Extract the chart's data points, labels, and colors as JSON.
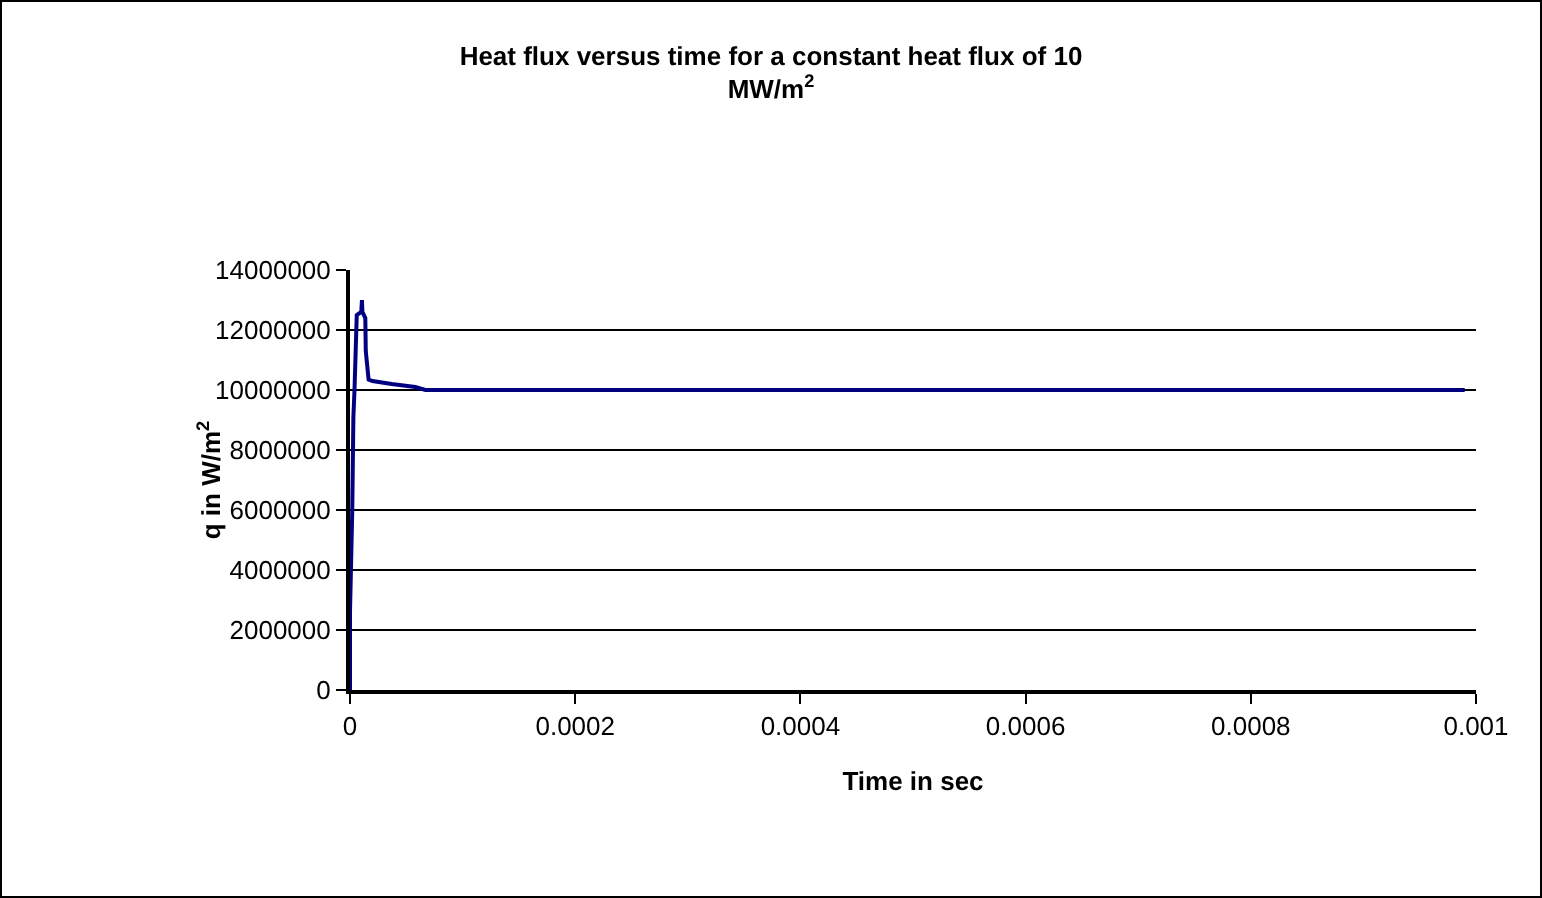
{
  "chart_data": {
    "type": "line",
    "title": "Heat flux versus time for a constant heat flux of 10 MW/m$^{2}$",
    "xlabel": "Time in sec",
    "ylabel": "q in W/m$^{2}$",
    "series": [
      {
        "color": "#000080",
        "x": [
          0,
          0,
          2e-06,
          3e-06,
          4e-06,
          6e-06,
          1e-05,
          1.06e-05,
          1.1e-05,
          1.36e-05,
          1.4e-05,
          1.65e-05,
          2e-05,
          3.7e-05,
          5.8e-05,
          6.7e-05,
          0.0002,
          0.0005,
          0.00099
        ],
        "values": [
          0,
          2600000,
          6000000,
          9100000,
          10000000,
          12500000,
          12600000,
          13000000,
          12600000,
          12400000,
          11300000,
          10350000,
          10300000,
          10200000,
          10100000,
          10000000,
          10000000,
          10000000,
          10000000
        ]
      }
    ],
    "xlim": [
      0,
      0.001
    ],
    "xticks": [
      0,
      0.0002,
      0.0004,
      0.0006,
      0.0008,
      0.001
    ],
    "ylim": [
      0,
      14000000
    ],
    "yticks": [
      0,
      2000000,
      4000000,
      6000000,
      8000000,
      10000000,
      12000000,
      14000000
    ],
    "grid": "y",
    "marker": "none",
    "line_style": "solid"
  }
}
